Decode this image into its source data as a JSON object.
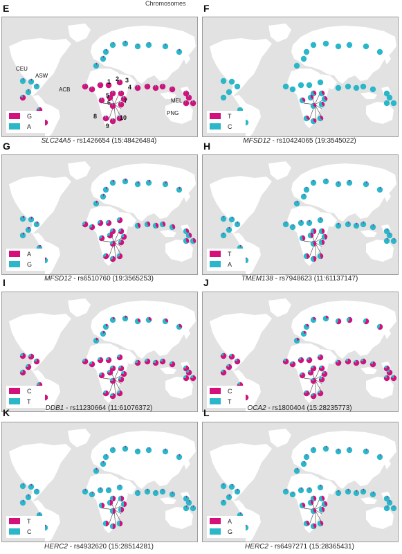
{
  "header": {
    "top_text": "Chromosomes"
  },
  "colors": {
    "magenta": "#d4107a",
    "teal": "#2ab7c9",
    "land": "#ffffff",
    "sea": "#e2e2e2"
  },
  "panels": [
    {
      "letter": "E",
      "gene": "SLC24A5",
      "snp": " - rs1426654 (15:48426484)",
      "legend": [
        {
          "label": "G",
          "color": "#d4107a"
        },
        {
          "label": "A",
          "color": "#2ab7c9"
        }
      ]
    },
    {
      "letter": "F",
      "gene": "MFSD12",
      "snp": " - rs10424065 (19:3545022)",
      "legend": [
        {
          "label": "T",
          "color": "#d4107a"
        },
        {
          "label": "C",
          "color": "#2ab7c9"
        }
      ]
    },
    {
      "letter": "G",
      "gene": "MFSD12",
      "snp": " - rs6510760 (19:3565253)",
      "legend": [
        {
          "label": "A",
          "color": "#d4107a"
        },
        {
          "label": "G",
          "color": "#2ab7c9"
        }
      ]
    },
    {
      "letter": "H",
      "gene": "TMEM138",
      "snp": " - rs7948623 (11:61137147)",
      "legend": [
        {
          "label": "T",
          "color": "#d4107a"
        },
        {
          "label": "A",
          "color": "#2ab7c9"
        }
      ]
    },
    {
      "letter": "I",
      "gene": "DDB1",
      "snp": " - rs11230664 (11:61076372)",
      "legend": [
        {
          "label": "C",
          "color": "#d4107a"
        },
        {
          "label": "T",
          "color": "#2ab7c9"
        }
      ]
    },
    {
      "letter": "J",
      "gene": "OCA2",
      "snp": " - rs1800404 (15:28235773)",
      "legend": [
        {
          "label": "C",
          "color": "#d4107a"
        },
        {
          "label": "T",
          "color": "#2ab7c9"
        }
      ]
    },
    {
      "letter": "K",
      "gene": "HERC2",
      "snp": " - rs4932620 (15:28514281)",
      "legend": [
        {
          "label": "T",
          "color": "#d4107a"
        },
        {
          "label": "C",
          "color": "#2ab7c9"
        }
      ]
    },
    {
      "letter": "L",
      "gene": "HERC2",
      "snp": " - rs6497271 (15:28365431)",
      "legend": [
        {
          "label": "A",
          "color": "#d4107a"
        },
        {
          "label": "G",
          "color": "#2ab7c9"
        }
      ]
    }
  ],
  "population_labels": [
    "CEU",
    "ASW",
    "ACB",
    "MEL",
    "PNG"
  ],
  "african_numbers": [
    "1",
    "2",
    "3",
    "4",
    "5",
    "6",
    "7",
    "8",
    "9",
    "10"
  ]
}
